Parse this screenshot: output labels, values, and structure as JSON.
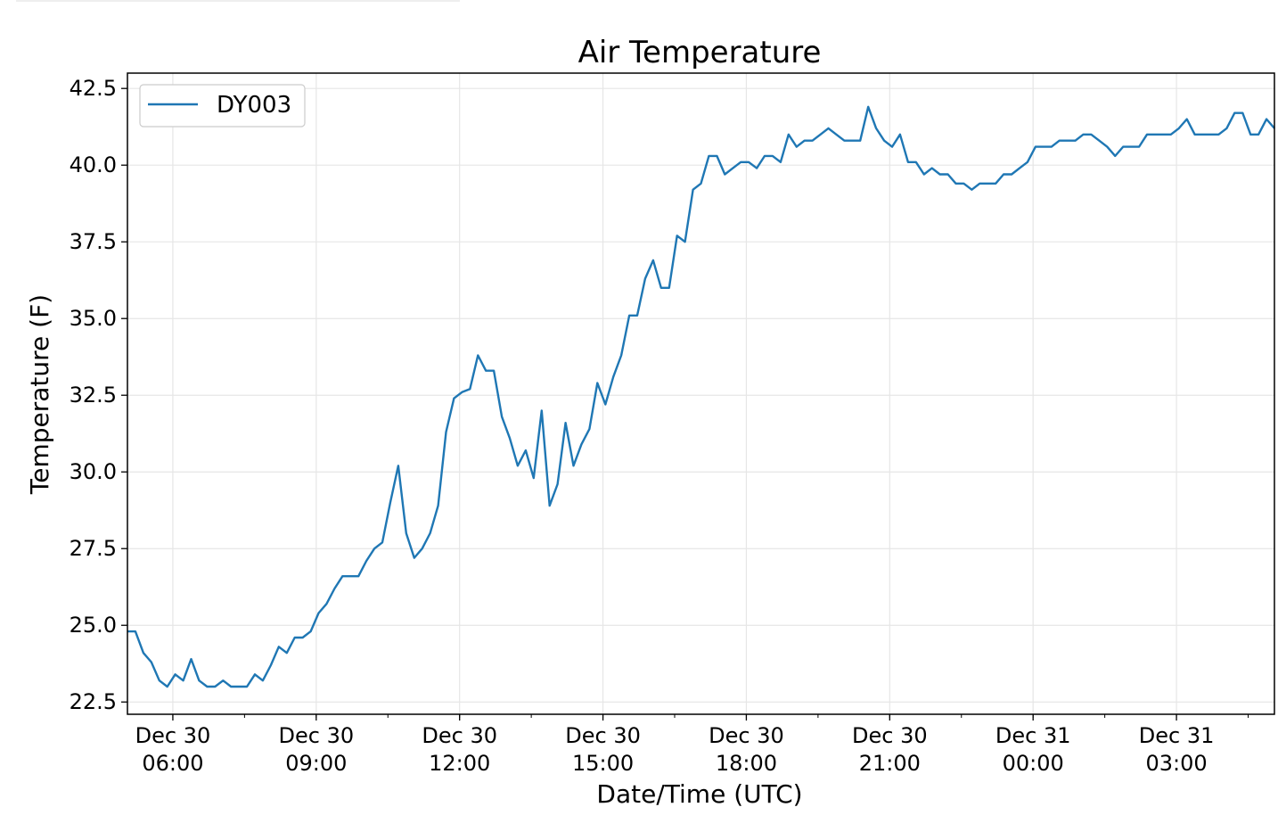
{
  "chart_data": {
    "type": "line",
    "title": "Air Temperature",
    "xlabel": "Date/Time (UTC)",
    "ylabel": "Temperature (F)",
    "ylim": [
      22.1,
      43.0
    ],
    "xlim": [
      "2019-12-30T05:03",
      "2019-12-31T05:03"
    ],
    "y_ticks": [
      "22.5",
      "25.0",
      "27.5",
      "30.0",
      "32.5",
      "35.0",
      "37.5",
      "40.0",
      "42.5"
    ],
    "x_ticks": [
      {
        "time": "2019-12-30T06:00",
        "line1": "Dec 30",
        "line2": "06:00"
      },
      {
        "time": "2019-12-30T09:00",
        "line1": "Dec 30",
        "line2": "09:00"
      },
      {
        "time": "2019-12-30T12:00",
        "line1": "Dec 30",
        "line2": "12:00"
      },
      {
        "time": "2019-12-30T15:00",
        "line1": "Dec 30",
        "line2": "15:00"
      },
      {
        "time": "2019-12-30T18:00",
        "line1": "Dec 30",
        "line2": "18:00"
      },
      {
        "time": "2019-12-30T21:00",
        "line1": "Dec 30",
        "line2": "21:00"
      },
      {
        "time": "2019-12-31T00:00",
        "line1": "Dec 31",
        "line2": "00:00"
      },
      {
        "time": "2019-12-31T03:00",
        "line1": "Dec 31",
        "line2": "03:00"
      }
    ],
    "grid": true,
    "legend": {
      "position": "top-left",
      "entries": [
        "DY003"
      ]
    },
    "series": [
      {
        "name": "DY003",
        "color": "#1f77b4",
        "x": [
          "2019-12-30T05:03",
          "2019-12-30T05:13",
          "2019-12-30T05:23",
          "2019-12-30T05:33",
          "2019-12-30T05:43",
          "2019-12-30T05:53",
          "2019-12-30T06:03",
          "2019-12-30T06:13",
          "2019-12-30T06:23",
          "2019-12-30T06:33",
          "2019-12-30T06:43",
          "2019-12-30T06:53",
          "2019-12-30T07:03",
          "2019-12-30T07:13",
          "2019-12-30T07:23",
          "2019-12-30T07:33",
          "2019-12-30T07:43",
          "2019-12-30T07:53",
          "2019-12-30T08:03",
          "2019-12-30T08:13",
          "2019-12-30T08:23",
          "2019-12-30T08:33",
          "2019-12-30T08:43",
          "2019-12-30T08:53",
          "2019-12-30T09:03",
          "2019-12-30T09:13",
          "2019-12-30T09:23",
          "2019-12-30T09:33",
          "2019-12-30T09:43",
          "2019-12-30T09:53",
          "2019-12-30T10:03",
          "2019-12-30T10:13",
          "2019-12-30T10:23",
          "2019-12-30T10:33",
          "2019-12-30T10:43",
          "2019-12-30T10:53",
          "2019-12-30T11:03",
          "2019-12-30T11:13",
          "2019-12-30T11:23",
          "2019-12-30T11:33",
          "2019-12-30T11:43",
          "2019-12-30T11:53",
          "2019-12-30T12:03",
          "2019-12-30T12:13",
          "2019-12-30T12:23",
          "2019-12-30T12:33",
          "2019-12-30T12:43",
          "2019-12-30T12:53",
          "2019-12-30T13:03",
          "2019-12-30T13:13",
          "2019-12-30T13:23",
          "2019-12-30T13:33",
          "2019-12-30T13:43",
          "2019-12-30T13:53",
          "2019-12-30T14:03",
          "2019-12-30T14:13",
          "2019-12-30T14:23",
          "2019-12-30T14:33",
          "2019-12-30T14:43",
          "2019-12-30T14:53",
          "2019-12-30T15:03",
          "2019-12-30T15:13",
          "2019-12-30T15:23",
          "2019-12-30T15:33",
          "2019-12-30T15:43",
          "2019-12-30T15:53",
          "2019-12-30T16:03",
          "2019-12-30T16:13",
          "2019-12-30T16:23",
          "2019-12-30T16:33",
          "2019-12-30T16:43",
          "2019-12-30T16:53",
          "2019-12-30T17:03",
          "2019-12-30T17:13",
          "2019-12-30T17:23",
          "2019-12-30T17:33",
          "2019-12-30T17:43",
          "2019-12-30T17:53",
          "2019-12-30T18:03",
          "2019-12-30T18:13",
          "2019-12-30T18:23",
          "2019-12-30T18:33",
          "2019-12-30T18:43",
          "2019-12-30T18:53",
          "2019-12-30T19:03",
          "2019-12-30T19:13",
          "2019-12-30T19:23",
          "2019-12-30T19:33",
          "2019-12-30T19:43",
          "2019-12-30T19:53",
          "2019-12-30T20:03",
          "2019-12-30T20:13",
          "2019-12-30T20:23",
          "2019-12-30T20:33",
          "2019-12-30T20:43",
          "2019-12-30T20:53",
          "2019-12-30T21:03",
          "2019-12-30T21:13",
          "2019-12-30T21:23",
          "2019-12-30T21:33",
          "2019-12-30T21:43",
          "2019-12-30T21:53",
          "2019-12-30T22:03",
          "2019-12-30T22:13",
          "2019-12-30T22:23",
          "2019-12-30T22:33",
          "2019-12-30T22:43",
          "2019-12-30T22:53",
          "2019-12-30T23:03",
          "2019-12-30T23:13",
          "2019-12-30T23:23",
          "2019-12-30T23:33",
          "2019-12-30T23:43",
          "2019-12-30T23:53",
          "2019-12-31T00:03",
          "2019-12-31T00:13",
          "2019-12-31T00:23",
          "2019-12-31T00:33",
          "2019-12-31T00:43",
          "2019-12-31T00:53",
          "2019-12-31T01:03",
          "2019-12-31T01:13",
          "2019-12-31T01:23",
          "2019-12-31T01:33",
          "2019-12-31T01:43",
          "2019-12-31T01:53",
          "2019-12-31T02:03",
          "2019-12-31T02:13",
          "2019-12-31T02:23",
          "2019-12-31T02:33",
          "2019-12-31T02:43",
          "2019-12-31T02:53",
          "2019-12-31T03:03",
          "2019-12-31T03:13",
          "2019-12-31T03:23",
          "2019-12-31T03:33",
          "2019-12-31T03:43",
          "2019-12-31T03:53",
          "2019-12-31T04:03",
          "2019-12-31T04:13",
          "2019-12-31T04:23",
          "2019-12-31T04:33",
          "2019-12-31T04:43",
          "2019-12-31T04:53",
          "2019-12-31T05:03"
        ],
        "y": [
          24.8,
          24.8,
          24.1,
          23.8,
          23.2,
          23.0,
          23.4,
          23.2,
          23.9,
          23.2,
          23.0,
          23.0,
          23.2,
          23.0,
          23.0,
          23.0,
          23.4,
          23.2,
          23.7,
          24.3,
          24.1,
          24.6,
          24.6,
          24.8,
          25.4,
          25.7,
          26.2,
          26.6,
          26.6,
          26.6,
          27.1,
          27.5,
          27.7,
          29.0,
          30.2,
          28.0,
          27.2,
          27.5,
          28.0,
          28.9,
          31.3,
          32.4,
          32.6,
          32.7,
          33.8,
          33.3,
          33.3,
          31.8,
          31.1,
          30.2,
          30.7,
          29.8,
          32.0,
          28.9,
          29.6,
          31.6,
          30.2,
          30.9,
          31.4,
          32.9,
          32.2,
          33.1,
          33.8,
          35.1,
          35.1,
          36.3,
          36.9,
          36.0,
          36.0,
          37.7,
          37.5,
          39.2,
          39.4,
          40.3,
          40.3,
          39.7,
          39.9,
          40.1,
          40.1,
          39.9,
          40.3,
          40.3,
          40.1,
          41.0,
          40.6,
          40.8,
          40.8,
          41.0,
          41.2,
          41.0,
          40.8,
          40.8,
          40.8,
          41.9,
          41.2,
          40.8,
          40.6,
          41.0,
          40.1,
          40.1,
          39.7,
          39.9,
          39.7,
          39.7,
          39.4,
          39.4,
          39.2,
          39.4,
          39.4,
          39.4,
          39.7,
          39.7,
          39.9,
          40.1,
          40.6,
          40.6,
          40.6,
          40.8,
          40.8,
          40.8,
          41.0,
          41.0,
          40.8,
          40.6,
          40.3,
          40.6,
          40.6,
          40.6,
          41.0,
          41.0,
          41.0,
          41.0,
          41.2,
          41.5,
          41.0,
          41.0,
          41.0,
          41.0,
          41.2,
          41.7,
          41.7,
          41.0,
          41.0,
          41.5,
          41.2
        ]
      }
    ]
  }
}
